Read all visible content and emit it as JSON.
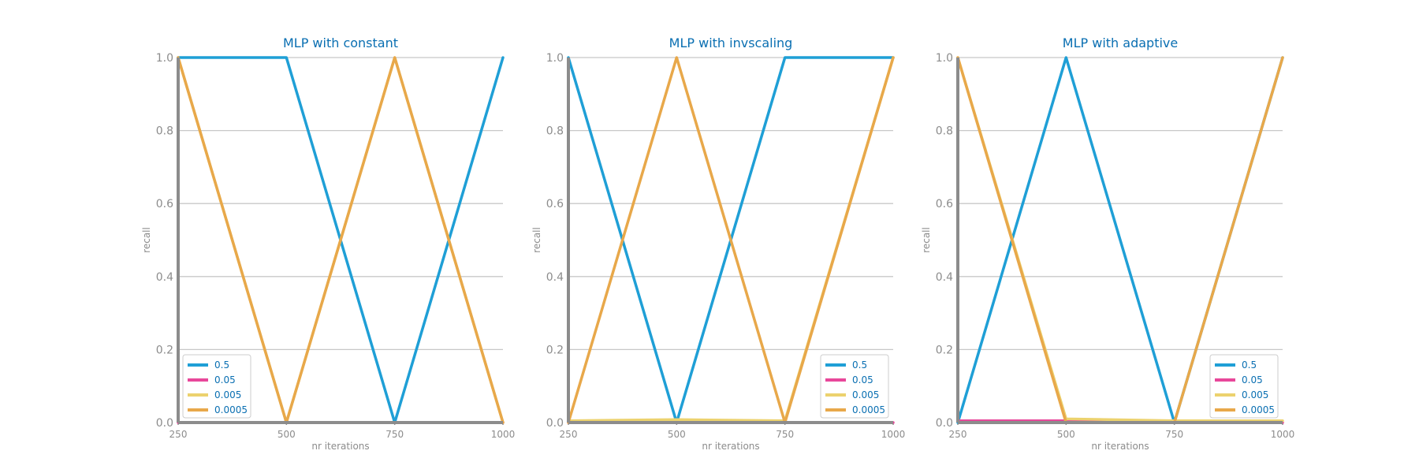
{
  "chart_data": [
    {
      "type": "line",
      "title": "MLP with constant",
      "xlabel": "nr iterations",
      "ylabel": "recall",
      "x": [
        250,
        500,
        750,
        1000
      ],
      "xticks": [
        "250",
        "500",
        "750",
        "1000"
      ],
      "yticks": [
        "0.0",
        "0.2",
        "0.4",
        "0.6",
        "0.8",
        "1.0"
      ],
      "xlim": [
        250,
        1000
      ],
      "ylim": [
        0,
        1
      ],
      "grid": "horizontal",
      "legend_position": "lower-left",
      "series": [
        {
          "name": "0.5",
          "color": "#1f9fd6",
          "values": [
            1.0,
            1.0,
            0.0,
            1.0
          ]
        },
        {
          "name": "0.05",
          "color": "#e8479a",
          "values": [
            0.0,
            0.0,
            0.0,
            0.0
          ]
        },
        {
          "name": "0.005",
          "color": "#ecd26e",
          "values": [
            1.0,
            0.0,
            1.0,
            0.0
          ]
        },
        {
          "name": "0.0005",
          "color": "#e8a84a",
          "values": [
            1.0,
            0.0,
            1.0,
            0.0
          ]
        }
      ]
    },
    {
      "type": "line",
      "title": "MLP with invscaling",
      "xlabel": "nr iterations",
      "ylabel": "recall",
      "x": [
        250,
        500,
        750,
        1000
      ],
      "xticks": [
        "250",
        "500",
        "750",
        "1000"
      ],
      "yticks": [
        "0.0",
        "0.2",
        "0.4",
        "0.6",
        "0.8",
        "1.0"
      ],
      "xlim": [
        250,
        1000
      ],
      "ylim": [
        0,
        1
      ],
      "grid": "horizontal",
      "legend_position": "lower-right",
      "series": [
        {
          "name": "0.5",
          "color": "#1f9fd6",
          "values": [
            1.0,
            0.0,
            1.0,
            1.0
          ]
        },
        {
          "name": "0.05",
          "color": "#e8479a",
          "values": [
            0.0,
            0.0,
            0.0,
            0.0
          ]
        },
        {
          "name": "0.005",
          "color": "#ecd26e",
          "values": [
            0.005,
            0.008,
            0.005,
            1.0
          ]
        },
        {
          "name": "0.0005",
          "color": "#e8a84a",
          "values": [
            0.0,
            1.0,
            0.0,
            1.0
          ]
        }
      ]
    },
    {
      "type": "line",
      "title": "MLP with adaptive",
      "xlabel": "nr iterations",
      "ylabel": "recall",
      "x": [
        250,
        500,
        750,
        1000
      ],
      "xticks": [
        "250",
        "500",
        "750",
        "1000"
      ],
      "yticks": [
        "0.0",
        "0.2",
        "0.4",
        "0.6",
        "0.8",
        "1.0"
      ],
      "xlim": [
        250,
        1000
      ],
      "ylim": [
        0,
        1
      ],
      "grid": "horizontal",
      "legend_position": "lower-right",
      "series": [
        {
          "name": "0.5",
          "color": "#1f9fd6",
          "values": [
            0.0,
            1.0,
            0.0,
            1.0
          ]
        },
        {
          "name": "0.05",
          "color": "#e8479a",
          "values": [
            0.005,
            0.005,
            0.0,
            0.0
          ]
        },
        {
          "name": "0.005",
          "color": "#ecd26e",
          "values": [
            1.0,
            0.01,
            0.005,
            0.005
          ]
        },
        {
          "name": "0.0005",
          "color": "#e8a84a",
          "values": [
            1.0,
            0.0,
            0.0,
            1.0
          ]
        }
      ]
    }
  ]
}
